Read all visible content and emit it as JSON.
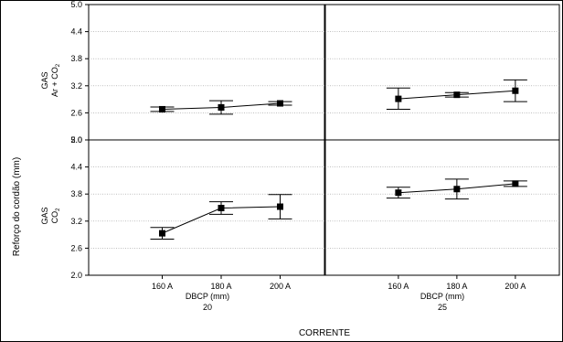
{
  "chart_data": {
    "type": "line",
    "ylabel": "Reforço do cordão (mm)",
    "xlabel": "CORRENTE",
    "y_ticks": [
      "5.0",
      "4.4",
      "3.8",
      "3.2",
      "2.6",
      "2.0"
    ],
    "ylim": [
      2.0,
      5.0
    ],
    "categories": [
      "160 A",
      "180 A",
      "200 A"
    ],
    "row_factor": "GAS",
    "rows": [
      {
        "label_main": "Ar + CO",
        "label_sub": "2"
      },
      {
        "label_main": "CO",
        "label_sub": "2"
      }
    ],
    "col_factor": "DBCP (mm)",
    "cols": [
      "20",
      "25"
    ],
    "grid": true,
    "panels": [
      {
        "row": 0,
        "col": 0,
        "mean": [
          2.68,
          2.72,
          2.81
        ],
        "lower": [
          2.63,
          2.57,
          2.77
        ],
        "upper": [
          2.73,
          2.87,
          2.85
        ]
      },
      {
        "row": 0,
        "col": 1,
        "mean": [
          2.91,
          3.0,
          3.09
        ],
        "lower": [
          2.68,
          2.95,
          2.85
        ],
        "upper": [
          3.15,
          3.05,
          3.33
        ]
      },
      {
        "row": 1,
        "col": 0,
        "mean": [
          2.93,
          3.49,
          3.52
        ],
        "lower": [
          2.8,
          3.35,
          3.25
        ],
        "upper": [
          3.06,
          3.63,
          3.79
        ]
      },
      {
        "row": 1,
        "col": 1,
        "mean": [
          3.83,
          3.91,
          4.03
        ],
        "lower": [
          3.71,
          3.69,
          3.97
        ],
        "upper": [
          3.95,
          4.13,
          4.09
        ]
      }
    ]
  }
}
